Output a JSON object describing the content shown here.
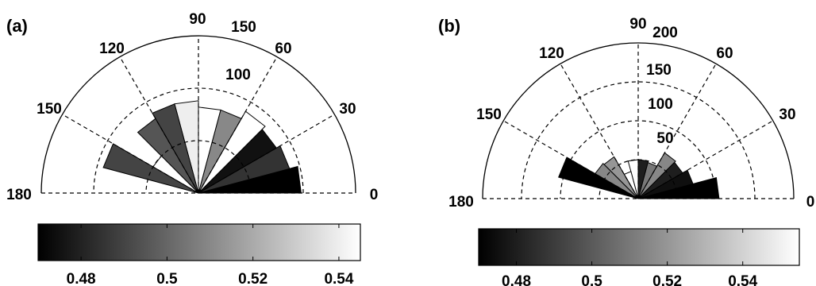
{
  "chart_data": [
    {
      "panel_label": "(a)",
      "type": "polar-histogram",
      "theta_range": [
        0,
        180
      ],
      "angle_tick_labels": [
        "0",
        "30",
        "60",
        "90",
        "120",
        "150",
        "180"
      ],
      "r_max": 150,
      "radial_rings": [
        50,
        100,
        150
      ],
      "radial_tick_labels": [
        "100",
        "150"
      ],
      "colorbar": {
        "min": 0.47,
        "max": 0.545,
        "tick_values": [
          0.48,
          0.5,
          0.52,
          0.54
        ],
        "tick_labels": [
          "0.48",
          "0.5",
          "0.52",
          "0.54"
        ]
      },
      "bins": [
        {
          "start": 0,
          "end": 15,
          "r": 98,
          "value": 0.47
        },
        {
          "start": 15,
          "end": 30,
          "r": 90,
          "value": 0.485
        },
        {
          "start": 30,
          "end": 45,
          "r": 86,
          "value": 0.475
        },
        {
          "start": 45,
          "end": 60,
          "r": 90,
          "value": 0.545
        },
        {
          "start": 60,
          "end": 75,
          "r": 82,
          "value": 0.51
        },
        {
          "start": 75,
          "end": 90,
          "r": 82,
          "value": 0.545
        },
        {
          "start": 90,
          "end": 105,
          "r": 88,
          "value": 0.54
        },
        {
          "start": 105,
          "end": 120,
          "r": 88,
          "value": 0.49
        },
        {
          "start": 120,
          "end": 135,
          "r": 82,
          "value": 0.495
        },
        {
          "start": 135,
          "end": 150,
          "r": 50,
          "value": 0.545
        },
        {
          "start": 150,
          "end": 165,
          "r": 94,
          "value": 0.49
        }
      ]
    },
    {
      "panel_label": "(b)",
      "type": "polar-histogram",
      "theta_range": [
        0,
        180
      ],
      "angle_tick_labels": [
        "0",
        "30",
        "60",
        "90",
        "120",
        "150",
        "180"
      ],
      "r_max": 200,
      "radial_rings": [
        50,
        100,
        150,
        200
      ],
      "radial_tick_labels": [
        "50",
        "100",
        "150",
        "200"
      ],
      "colorbar": {
        "min": 0.47,
        "max": 0.555,
        "tick_values": [
          0.48,
          0.5,
          0.52,
          0.54
        ],
        "tick_labels": [
          "0.48",
          "0.5",
          "0.52",
          "0.54"
        ]
      },
      "bins": [
        {
          "start": 0,
          "end": 15,
          "r": 104,
          "value": 0.47
        },
        {
          "start": 15,
          "end": 30,
          "r": 73,
          "value": 0.475
        },
        {
          "start": 30,
          "end": 45,
          "r": 66,
          "value": 0.48
        },
        {
          "start": 45,
          "end": 60,
          "r": 68,
          "value": 0.515
        },
        {
          "start": 60,
          "end": 75,
          "r": 48,
          "value": 0.51
        },
        {
          "start": 75,
          "end": 90,
          "r": 50,
          "value": 0.48
        },
        {
          "start": 90,
          "end": 105,
          "r": 50,
          "value": 0.555
        },
        {
          "start": 105,
          "end": 120,
          "r": 36,
          "value": 0.555
        },
        {
          "start": 120,
          "end": 135,
          "r": 62,
          "value": 0.52
        },
        {
          "start": 135,
          "end": 150,
          "r": 64,
          "value": 0.515
        },
        {
          "start": 150,
          "end": 165,
          "r": 106,
          "value": 0.47
        }
      ]
    }
  ]
}
